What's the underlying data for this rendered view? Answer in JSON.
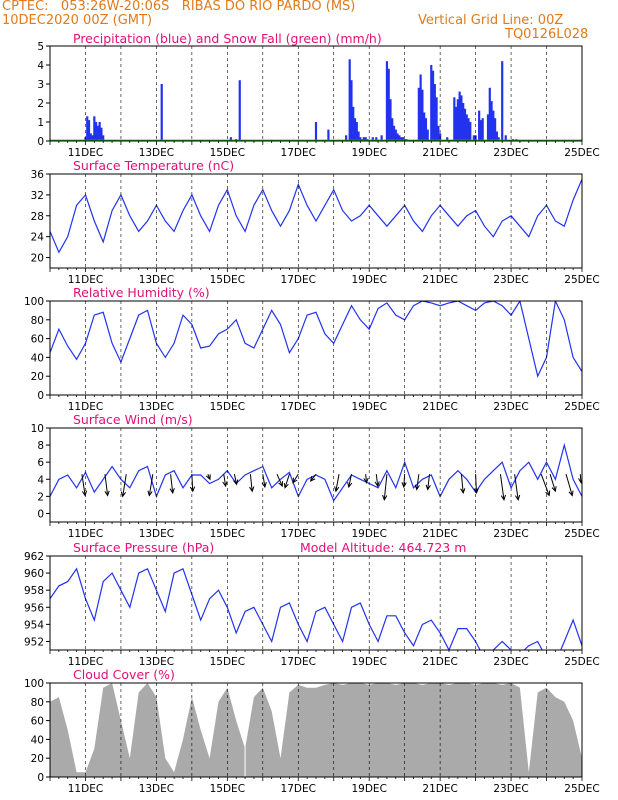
{
  "header": {
    "line1_left": "CPTEC:   053:26W-20:06S   RIBAS DO RIO PARDO (MS)",
    "line2_left": "10DEC2020 00Z (GMT)",
    "line2_right": "Vertical Grid Line: 00Z",
    "line3_right": "TQ0126L028"
  },
  "colors": {
    "header": "#e07a1a",
    "title": "#e0107a",
    "line": "#2233ee",
    "precip": "#2233ee",
    "snow": "#22aa22",
    "cloud": "#aaaaaa",
    "arrow": "#000000"
  },
  "x_axis": {
    "start_day": 10,
    "end_day": 25,
    "tick_labels": [
      "11DEC",
      "13DEC",
      "15DEC",
      "17DEC",
      "19DEC",
      "21DEC",
      "23DEC",
      "25DEC"
    ]
  },
  "chart_data": [
    {
      "type": "bar",
      "title": "Precipitation (blue) and Snow Fall (green) (mm/h)",
      "ylim": [
        0,
        5
      ],
      "yticks": [
        "0",
        "1",
        "2",
        "3",
        "4",
        "5"
      ],
      "series": [
        {
          "name": "Precipitation",
          "x": [
            11.0,
            11.05,
            11.1,
            11.15,
            11.2,
            11.25,
            11.3,
            11.35,
            11.4,
            11.45,
            11.5,
            13.15,
            15.1,
            15.25,
            15.35,
            17.5,
            17.85,
            18.35,
            18.45,
            18.5,
            18.55,
            18.6,
            18.65,
            18.7,
            18.75,
            18.8,
            18.85,
            18.9,
            18.95,
            19.1,
            19.2,
            19.35,
            19.5,
            19.55,
            19.6,
            19.65,
            19.7,
            19.75,
            19.8,
            19.85,
            19.9,
            19.95,
            20.0,
            20.05,
            20.4,
            20.45,
            20.5,
            20.55,
            20.6,
            20.65,
            20.75,
            20.8,
            20.85,
            20.9,
            20.95,
            21.0,
            21.2,
            21.4,
            21.45,
            21.5,
            21.55,
            21.6,
            21.65,
            21.7,
            21.75,
            21.8,
            21.85,
            21.95,
            22.0,
            22.1,
            22.15,
            22.2,
            22.35,
            22.4,
            22.45,
            22.5,
            22.55,
            22.6,
            22.65,
            22.75,
            22.85,
            23.05,
            23.15,
            23.2
          ],
          "values": [
            0.2,
            1.3,
            1.1,
            0.4,
            0.3,
            1.3,
            1.0,
            0.8,
            1.0,
            0.7,
            0.3,
            3.0,
            0.2,
            0.1,
            3.2,
            1.0,
            0.6,
            0.3,
            4.3,
            3.2,
            1.8,
            1.2,
            1.0,
            0.5,
            0.2,
            0.1,
            0.2,
            0.2,
            0.1,
            0.2,
            0.2,
            0.3,
            4.2,
            3.8,
            2.2,
            1.2,
            0.8,
            0.6,
            0.4,
            0.3,
            0.2,
            0.2,
            0.1,
            0.1,
            2.8,
            3.5,
            2.7,
            1.5,
            1.2,
            0.6,
            4.0,
            3.7,
            3.0,
            2.3,
            0.8,
            0.4,
            0.2,
            2.3,
            1.8,
            2.2,
            2.6,
            2.4,
            2.0,
            1.7,
            1.4,
            1.2,
            1.0,
            0.3,
            0.3,
            1.6,
            1.1,
            1.2,
            1.4,
            2.8,
            2.1,
            1.6,
            1.2,
            0.5,
            0.2,
            4.2,
            0.3,
            0.1,
            0.1,
            0.05
          ]
        },
        {
          "name": "Snow Fall",
          "x": [],
          "values": []
        }
      ]
    },
    {
      "type": "line",
      "title": "Surface Temperature (nC)",
      "ylim": [
        18,
        36
      ],
      "yticks": [
        "20",
        "24",
        "28",
        "32",
        "36"
      ],
      "x": [
        10.0,
        10.25,
        10.5,
        10.75,
        11.0,
        11.25,
        11.5,
        11.75,
        12.0,
        12.25,
        12.5,
        12.75,
        13.0,
        13.25,
        13.5,
        13.75,
        14.0,
        14.25,
        14.5,
        14.75,
        15.0,
        15.25,
        15.5,
        15.75,
        16.0,
        16.25,
        16.5,
        16.75,
        17.0,
        17.25,
        17.5,
        17.75,
        18.0,
        18.25,
        18.5,
        18.75,
        19.0,
        19.25,
        19.5,
        19.75,
        20.0,
        20.25,
        20.5,
        20.75,
        21.0,
        21.25,
        21.5,
        21.75,
        22.0,
        22.25,
        22.5,
        22.75,
        23.0,
        23.25,
        23.5,
        23.75,
        24.0,
        24.25,
        24.5,
        24.75,
        25.0
      ],
      "values": [
        25,
        21,
        24,
        30,
        32,
        27,
        23,
        29,
        32,
        28,
        25,
        27,
        30,
        27,
        25,
        29,
        32,
        28,
        25,
        30,
        33,
        28,
        25,
        30,
        33,
        29,
        26,
        29,
        34,
        30,
        27,
        30,
        33,
        29,
        27,
        28,
        30,
        28,
        26,
        28,
        30,
        27,
        25,
        28,
        30,
        28,
        26,
        28,
        29,
        26,
        24,
        27,
        28,
        26,
        24,
        28,
        30,
        27,
        26,
        31,
        35
      ]
    },
    {
      "type": "line",
      "title": "Relative Humidity (%)",
      "ylim": [
        0,
        100
      ],
      "yticks": [
        "0",
        "20",
        "40",
        "60",
        "80",
        "100"
      ],
      "x": [
        10.0,
        10.25,
        10.5,
        10.75,
        11.0,
        11.25,
        11.5,
        11.75,
        12.0,
        12.25,
        12.5,
        12.75,
        13.0,
        13.25,
        13.5,
        13.75,
        14.0,
        14.25,
        14.5,
        14.75,
        15.0,
        15.25,
        15.5,
        15.75,
        16.0,
        16.25,
        16.5,
        16.75,
        17.0,
        17.25,
        17.5,
        17.75,
        18.0,
        18.25,
        18.5,
        18.75,
        19.0,
        19.25,
        19.5,
        19.75,
        20.0,
        20.25,
        20.5,
        20.75,
        21.0,
        21.25,
        21.5,
        21.75,
        22.0,
        22.25,
        22.5,
        22.75,
        23.0,
        23.25,
        23.5,
        23.75,
        24.0,
        24.25,
        24.5,
        24.75,
        25.0
      ],
      "values": [
        45,
        70,
        52,
        38,
        55,
        85,
        88,
        55,
        35,
        60,
        85,
        90,
        55,
        40,
        55,
        85,
        75,
        50,
        52,
        65,
        70,
        80,
        55,
        50,
        70,
        90,
        75,
        45,
        60,
        85,
        88,
        65,
        55,
        75,
        95,
        80,
        70,
        92,
        98,
        85,
        80,
        95,
        100,
        98,
        95,
        98,
        100,
        95,
        90,
        98,
        100,
        95,
        85,
        100,
        60,
        20,
        40,
        100,
        80,
        40,
        25
      ]
    },
    {
      "type": "line",
      "title": "Surface Wind (m/s)",
      "ylim": [
        -1,
        10
      ],
      "yticks": [
        "0",
        "2",
        "4",
        "6",
        "8",
        "10"
      ],
      "x": [
        10.0,
        10.25,
        10.5,
        10.75,
        11.0,
        11.25,
        11.5,
        11.75,
        12.0,
        12.25,
        12.5,
        12.75,
        13.0,
        13.25,
        13.5,
        13.75,
        14.0,
        14.25,
        14.5,
        14.75,
        15.0,
        15.25,
        15.5,
        15.75,
        16.0,
        16.25,
        16.5,
        16.75,
        17.0,
        17.25,
        17.5,
        17.75,
        18.0,
        18.25,
        18.5,
        18.75,
        19.0,
        19.25,
        19.5,
        19.75,
        20.0,
        20.25,
        20.5,
        20.75,
        21.0,
        21.25,
        21.5,
        21.75,
        22.0,
        22.25,
        22.5,
        22.75,
        23.0,
        23.25,
        23.5,
        23.75,
        24.0,
        24.25,
        24.5,
        24.75,
        25.0
      ],
      "values": [
        2,
        4,
        4.5,
        3,
        4.8,
        2.5,
        4,
        5.5,
        4,
        3,
        5,
        5.5,
        2,
        4.5,
        5,
        3,
        4.5,
        4.5,
        3.5,
        4,
        5,
        3.5,
        4.5,
        5,
        5.5,
        3,
        4,
        4.8,
        2,
        4,
        4.5,
        4,
        1.5,
        3,
        4.5,
        4,
        3.5,
        3,
        5,
        3,
        6,
        3,
        4,
        4.5,
        2,
        4,
        5,
        4,
        2.5,
        4,
        5,
        6,
        3,
        5,
        6,
        4,
        6,
        4,
        8,
        4,
        2
      ]
    },
    {
      "type": "line",
      "title": "Surface Pressure (hPa)",
      "annotation": "Model Altitude: 464.723  m",
      "ylim": [
        951,
        962
      ],
      "yticks": [
        "952",
        "954",
        "956",
        "958",
        "960",
        "962"
      ],
      "x": [
        10.0,
        10.25,
        10.5,
        10.75,
        11.0,
        11.25,
        11.5,
        11.75,
        12.0,
        12.25,
        12.5,
        12.75,
        13.0,
        13.25,
        13.5,
        13.75,
        14.0,
        14.25,
        14.5,
        14.75,
        15.0,
        15.25,
        15.5,
        15.75,
        16.0,
        16.25,
        16.5,
        16.75,
        17.0,
        17.25,
        17.5,
        17.75,
        18.0,
        18.25,
        18.5,
        18.75,
        19.0,
        19.25,
        19.5,
        19.75,
        20.0,
        20.25,
        20.5,
        20.75,
        21.0,
        21.25,
        21.5,
        21.75,
        22.0,
        22.25,
        22.5,
        22.75,
        23.0,
        23.25,
        23.5,
        23.75,
        24.0,
        24.25,
        24.5,
        24.75,
        25.0
      ],
      "values": [
        957,
        958.5,
        959,
        960.5,
        957,
        954.5,
        959,
        960,
        958,
        956,
        960,
        960.5,
        958,
        955.5,
        960,
        960.5,
        957.5,
        954.5,
        957,
        958,
        956,
        953,
        955.5,
        956,
        954,
        952,
        956,
        956.5,
        954,
        952,
        955.5,
        956,
        954,
        952,
        956,
        956.5,
        954,
        952,
        955,
        955,
        953,
        951.5,
        954,
        954.5,
        953,
        951,
        953.5,
        953.5,
        952,
        950,
        951,
        952,
        951,
        950.5,
        951.5,
        952,
        950,
        949.5,
        952,
        954.5,
        951.5
      ]
    },
    {
      "type": "area",
      "title": "Cloud Cover (%)",
      "ylim": [
        0,
        100
      ],
      "yticks": [
        "0",
        "20",
        "40",
        "60",
        "80",
        "100"
      ],
      "x": [
        10.0,
        10.25,
        10.5,
        10.75,
        11.0,
        11.25,
        11.5,
        11.75,
        12.0,
        12.25,
        12.5,
        12.75,
        13.0,
        13.25,
        13.5,
        13.75,
        14.0,
        14.25,
        14.5,
        14.75,
        15.0,
        15.25,
        15.5,
        15.75,
        16.0,
        16.25,
        16.5,
        16.75,
        17.0,
        17.25,
        17.5,
        17.75,
        18.0,
        18.25,
        18.5,
        18.75,
        19.0,
        19.25,
        19.5,
        19.75,
        20.0,
        20.25,
        20.5,
        20.75,
        21.0,
        21.25,
        21.5,
        21.75,
        22.0,
        22.25,
        22.5,
        22.75,
        23.0,
        23.25,
        23.5,
        23.75,
        24.0,
        24.25,
        24.5,
        24.75,
        25.0
      ],
      "values": [
        80,
        85,
        50,
        5,
        5,
        30,
        95,
        100,
        60,
        20,
        90,
        100,
        85,
        20,
        5,
        40,
        85,
        50,
        20,
        80,
        95,
        60,
        30,
        85,
        95,
        70,
        20,
        90,
        98,
        95,
        95,
        98,
        100,
        98,
        100,
        100,
        98,
        100,
        100,
        98,
        100,
        100,
        98,
        100,
        100,
        98,
        100,
        100,
        98,
        100,
        100,
        98,
        100,
        95,
        5,
        90,
        95,
        85,
        80,
        60,
        20
      ]
    }
  ],
  "wind_arrows": [
    {
      "x": 10.9,
      "dx": 0.18,
      "dy": 2.5
    },
    {
      "x": 11.55,
      "dx": 0.15,
      "dy": 2.5
    },
    {
      "x": 12.15,
      "dx": -0.2,
      "dy": 2.6
    },
    {
      "x": 12.9,
      "dx": -0.2,
      "dy": 2.5
    },
    {
      "x": 13.4,
      "dx": 0.12,
      "dy": 2.2
    },
    {
      "x": 14.0,
      "dx": 0.05,
      "dy": 2.0
    },
    {
      "x": 14.45,
      "dx": 0.12,
      "dy": 0.6
    },
    {
      "x": 14.9,
      "dx": 0.1,
      "dy": 1.4
    },
    {
      "x": 15.2,
      "dx": 0.12,
      "dy": 1.2
    },
    {
      "x": 15.65,
      "dx": 0.1,
      "dy": 2.0
    },
    {
      "x": 16.0,
      "dx": 0.12,
      "dy": 1.5
    },
    {
      "x": 16.4,
      "dx": 0.3,
      "dy": 1.4
    },
    {
      "x": 16.75,
      "dx": -0.25,
      "dy": 1.6
    },
    {
      "x": 17.0,
      "dx": -0.3,
      "dy": 1.0
    },
    {
      "x": 17.5,
      "dx": -0.3,
      "dy": 0.8
    },
    {
      "x": 18.15,
      "dx": -0.18,
      "dy": 2.0
    },
    {
      "x": 18.5,
      "dx": -0.15,
      "dy": 1.5
    },
    {
      "x": 18.9,
      "dx": 0.05,
      "dy": 1.0
    },
    {
      "x": 19.2,
      "dx": 0.08,
      "dy": 1.4
    },
    {
      "x": 19.5,
      "dx": -0.15,
      "dy": 3.0
    },
    {
      "x": 20.0,
      "dx": -0.05,
      "dy": 1.5
    },
    {
      "x": 20.4,
      "dx": -0.12,
      "dy": 1.8
    },
    {
      "x": 20.7,
      "dx": -0.1,
      "dy": 1.8
    },
    {
      "x": 21.6,
      "dx": 0.1,
      "dy": 2.2
    },
    {
      "x": 22.0,
      "dx": 0.05,
      "dy": 2.2
    },
    {
      "x": 22.7,
      "dx": 0.2,
      "dy": 3.0
    },
    {
      "x": 23.1,
      "dx": 0.2,
      "dy": 3.0
    },
    {
      "x": 23.85,
      "dx": 0.45,
      "dy": 2.5
    },
    {
      "x": 24.1,
      "dx": 0.3,
      "dy": 2.0
    },
    {
      "x": 24.55,
      "dx": 0.35,
      "dy": 2.5
    },
    {
      "x": 24.95,
      "dx": 0.05,
      "dy": 1.0
    }
  ]
}
